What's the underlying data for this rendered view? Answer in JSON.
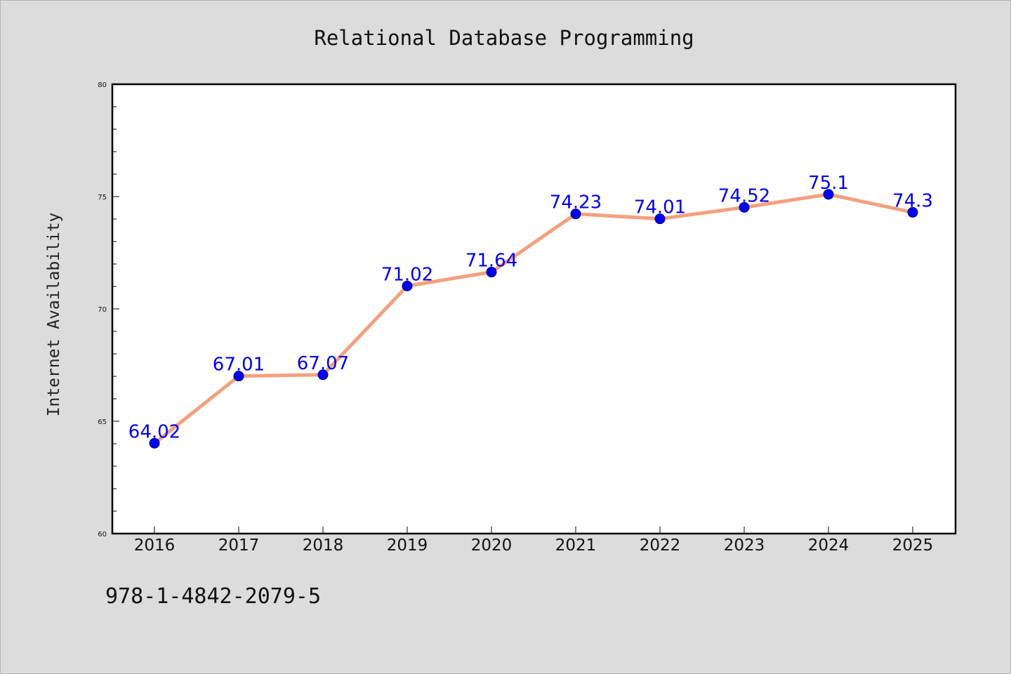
{
  "footer": {
    "isbn": "978-1-4842-2079-5"
  },
  "chart_data": {
    "type": "line",
    "title": "Relational Database Programming",
    "xlabel": "",
    "ylabel": "Internet Availability",
    "x": [
      "2016",
      "2017",
      "2018",
      "2019",
      "2020",
      "2021",
      "2022",
      "2023",
      "2024",
      "2025"
    ],
    "series": [
      {
        "values": [
          64.02,
          67.01,
          67.07,
          71.02,
          71.64,
          74.23,
          74.01,
          74.52,
          75.1,
          74.3
        ],
        "data_labels": [
          "64.02",
          "67.01",
          "67.07",
          "71.02",
          "71.64",
          "74.23",
          "74.01",
          "74.52",
          "75.1",
          "74.3"
        ],
        "line_color": "#f4a07e",
        "marker_color": "#0000ee"
      }
    ],
    "ylim": [
      60,
      80
    ],
    "yticks": [
      "60",
      "65",
      "70",
      "75",
      "80"
    ],
    "yminor_step": 1,
    "grid": false,
    "legend": "none",
    "background": "#dcdcdc",
    "plot_background": "#ffffff"
  }
}
